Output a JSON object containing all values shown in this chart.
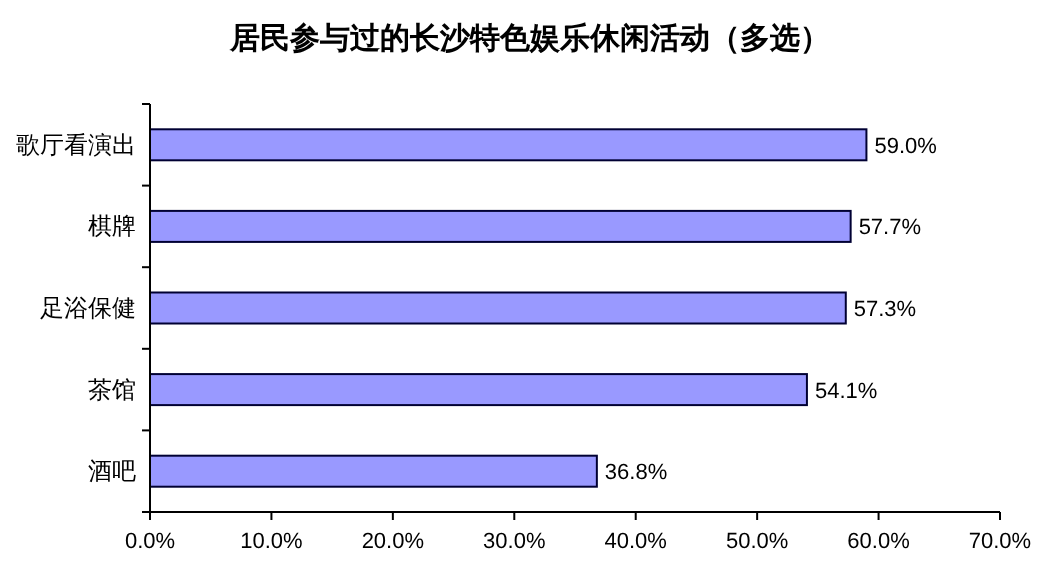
{
  "chart_data": {
    "type": "bar",
    "orientation": "horizontal",
    "title": "居民参与过的长沙特色娱乐休闲活动（多选）",
    "categories": [
      "歌厅看演出",
      "棋牌",
      "足浴保健",
      "茶馆",
      "酒吧"
    ],
    "values": [
      59.0,
      57.7,
      57.3,
      54.1,
      36.8
    ],
    "value_labels": [
      "59.0%",
      "57.7%",
      "57.3%",
      "54.1%",
      "36.8%"
    ],
    "color": "#9999ff",
    "xlim": [
      0,
      70
    ],
    "xticks": [
      {
        "value": 0,
        "label": "0.0%"
      },
      {
        "value": 10,
        "label": "10.0%"
      },
      {
        "value": 20,
        "label": "20.0%"
      },
      {
        "value": 30,
        "label": "30.0%"
      },
      {
        "value": 40,
        "label": "40.0%"
      },
      {
        "value": 50,
        "label": "50.0%"
      },
      {
        "value": 60,
        "label": "60.0%"
      },
      {
        "value": 70,
        "label": "70.0%"
      }
    ],
    "grid": false
  }
}
